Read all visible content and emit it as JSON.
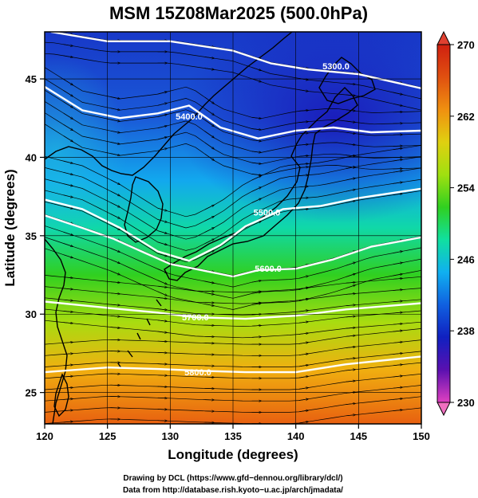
{
  "title": "MSM 15Z08Mar2025 (500.0hPa)",
  "x_axis": {
    "label": "Longitude (degrees)",
    "range": [
      120,
      150
    ],
    "ticks": [
      120,
      125,
      130,
      135,
      140,
      145,
      150
    ]
  },
  "y_axis": {
    "label": "Latitude  (degrees)",
    "range": [
      23,
      48
    ],
    "ticks": [
      25,
      30,
      35,
      40,
      45
    ]
  },
  "colorbar": {
    "min": 230,
    "max": 270,
    "ticks": [
      230,
      238,
      246,
      254,
      262,
      270
    ],
    "colormap": "rainbow",
    "colors": [
      "#e040c0",
      "#5a10b0",
      "#1020c0",
      "#1060e0",
      "#10b0f0",
      "#10e0a0",
      "#30d020",
      "#a0e010",
      "#e0d010",
      "#f09010",
      "#e05010",
      "#d02010"
    ]
  },
  "contours": [
    {
      "label": "5300.0",
      "points": [
        [
          120.5,
          48
        ],
        [
          125,
          47.4
        ],
        [
          130,
          47.4
        ],
        [
          135,
          46.8
        ],
        [
          138,
          46
        ],
        [
          141,
          45.6
        ],
        [
          145,
          45.3
        ],
        [
          150,
          44.4
        ]
      ],
      "label_at": [
        143.2,
        45.6
      ]
    },
    {
      "label": "5400.0",
      "points": [
        [
          120,
          44.5
        ],
        [
          123,
          43
        ],
        [
          126,
          42.5
        ],
        [
          129,
          42.8
        ],
        [
          131.5,
          43.3
        ],
        [
          134,
          41.9
        ],
        [
          137,
          41.2
        ],
        [
          140,
          41.7
        ],
        [
          143,
          41.9
        ],
        [
          146,
          41.6
        ],
        [
          150,
          41.7
        ]
      ],
      "label_at": [
        131.5,
        42.4
      ]
    },
    {
      "label": "5500.0",
      "points": [
        [
          120,
          37.3
        ],
        [
          123,
          36.7
        ],
        [
          126,
          35.5
        ],
        [
          129,
          34
        ],
        [
          131.5,
          33.4
        ],
        [
          134,
          34.4
        ],
        [
          136,
          35.6
        ],
        [
          139,
          36.7
        ],
        [
          142,
          36.9
        ],
        [
          145,
          37.4
        ],
        [
          150,
          38
        ]
      ],
      "label_at": [
        137.7,
        36.3
      ]
    },
    {
      "label": "5600.0",
      "points": [
        [
          120,
          36.3
        ],
        [
          123,
          35.5
        ],
        [
          125.5,
          34.8
        ],
        [
          128,
          33.9
        ],
        [
          130,
          33.2
        ],
        [
          132.5,
          32.8
        ],
        [
          135,
          32.4
        ],
        [
          137,
          32.8
        ],
        [
          140,
          32.9
        ],
        [
          143,
          33.5
        ],
        [
          146,
          34.3
        ],
        [
          150,
          34.9
        ]
      ],
      "label_at": [
        137.8,
        32.7
      ]
    },
    {
      "label": "5700.0",
      "points": [
        [
          120,
          30.8
        ],
        [
          125,
          30.4
        ],
        [
          129,
          30.1
        ],
        [
          132,
          29.8
        ],
        [
          136,
          29.7
        ],
        [
          140,
          29.9
        ],
        [
          144,
          30.3
        ],
        [
          150,
          30.7
        ]
      ],
      "label_at": [
        132,
        29.6
      ]
    },
    {
      "label": "5800.0",
      "points": [
        [
          120,
          26.3
        ],
        [
          125,
          26.6
        ],
        [
          129,
          26.5
        ],
        [
          132,
          26.4
        ],
        [
          136,
          26.3
        ],
        [
          140,
          26.3
        ],
        [
          144,
          26.8
        ],
        [
          150,
          27.3
        ]
      ],
      "label_at": [
        132.2,
        26.1
      ]
    }
  ],
  "credits": {
    "line1": "Drawing by DCL (https://www.gfd−dennou.org/library/dcl/)",
    "line2": "Data from http://database.rish.kyoto−u.ac.jp/arch/jmadata/"
  }
}
